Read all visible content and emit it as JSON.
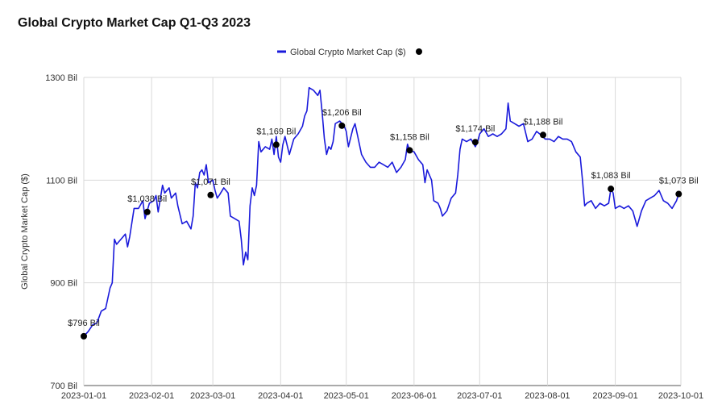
{
  "chart_data": {
    "type": "line",
    "title": "Global Crypto Market Cap Q1-Q3 2023",
    "ylabel": "Global Crypto Market Cap ($)",
    "xlabel": "",
    "ylim": [
      700,
      1300
    ],
    "y_ticks": [
      "700 Bil",
      "900 Bil",
      "1100 Bil",
      "1300 Bil"
    ],
    "y_tick_values": [
      700,
      900,
      1100,
      1300
    ],
    "x_ticks": [
      "2023-01-01",
      "2023-02-01",
      "2023-03-01",
      "2023-04-01",
      "2023-05-01",
      "2023-06-01",
      "2023-07-01",
      "2023-08-01",
      "2023-09-01",
      "2023-10-01"
    ],
    "grid": true,
    "legend_position": "top-center",
    "series": [
      {
        "name": "Global Crypto Market Cap ($)",
        "color": "#1a1adb",
        "points": [
          [
            "2023-01-01",
            796
          ],
          [
            "2023-01-03",
            805
          ],
          [
            "2023-01-05",
            818
          ],
          [
            "2023-01-07",
            822
          ],
          [
            "2023-01-09",
            845
          ],
          [
            "2023-01-11",
            850
          ],
          [
            "2023-01-13",
            890
          ],
          [
            "2023-01-14",
            900
          ],
          [
            "2023-01-15",
            985
          ],
          [
            "2023-01-16",
            975
          ],
          [
            "2023-01-18",
            985
          ],
          [
            "2023-01-20",
            995
          ],
          [
            "2023-01-21",
            970
          ],
          [
            "2023-01-22",
            990
          ],
          [
            "2023-01-24",
            1045
          ],
          [
            "2023-01-26",
            1045
          ],
          [
            "2023-01-28",
            1060
          ],
          [
            "2023-01-29",
            1025
          ],
          [
            "2023-01-31",
            1055
          ],
          [
            "2023-02-02",
            1060
          ],
          [
            "2023-02-03",
            1070
          ],
          [
            "2023-02-04",
            1038
          ],
          [
            "2023-02-06",
            1090
          ],
          [
            "2023-02-07",
            1075
          ],
          [
            "2023-02-09",
            1085
          ],
          [
            "2023-02-10",
            1065
          ],
          [
            "2023-02-12",
            1075
          ],
          [
            "2023-02-13",
            1050
          ],
          [
            "2023-02-15",
            1015
          ],
          [
            "2023-02-17",
            1020
          ],
          [
            "2023-02-19",
            1005
          ],
          [
            "2023-02-20",
            1030
          ],
          [
            "2023-02-21",
            1095
          ],
          [
            "2023-02-22",
            1085
          ],
          [
            "2023-02-23",
            1115
          ],
          [
            "2023-02-24",
            1120
          ],
          [
            "2023-02-25",
            1110
          ],
          [
            "2023-02-26",
            1130
          ],
          [
            "2023-02-27",
            1095
          ],
          [
            "2023-03-01",
            1100
          ],
          [
            "2023-03-02",
            1080
          ],
          [
            "2023-03-03",
            1065
          ],
          [
            "2023-03-04",
            1071
          ],
          [
            "2023-03-06",
            1085
          ],
          [
            "2023-03-08",
            1075
          ],
          [
            "2023-03-09",
            1030
          ],
          [
            "2023-03-11",
            1025
          ],
          [
            "2023-03-13",
            1020
          ],
          [
            "2023-03-14",
            985
          ],
          [
            "2023-03-15",
            935
          ],
          [
            "2023-03-16",
            960
          ],
          [
            "2023-03-17",
            945
          ],
          [
            "2023-03-18",
            1050
          ],
          [
            "2023-03-19",
            1085
          ],
          [
            "2023-03-20",
            1070
          ],
          [
            "2023-03-21",
            1090
          ],
          [
            "2023-03-22",
            1175
          ],
          [
            "2023-03-23",
            1155
          ],
          [
            "2023-03-25",
            1165
          ],
          [
            "2023-03-27",
            1160
          ],
          [
            "2023-03-28",
            1180
          ],
          [
            "2023-03-29",
            1150
          ],
          [
            "2023-03-30",
            1185
          ],
          [
            "2023-03-31",
            1145
          ],
          [
            "2023-04-01",
            1135
          ],
          [
            "2023-04-02",
            1169
          ],
          [
            "2023-04-03",
            1185
          ],
          [
            "2023-04-05",
            1150
          ],
          [
            "2023-04-07",
            1180
          ],
          [
            "2023-04-09",
            1190
          ],
          [
            "2023-04-11",
            1205
          ],
          [
            "2023-04-12",
            1225
          ],
          [
            "2023-04-13",
            1235
          ],
          [
            "2023-04-14",
            1280
          ],
          [
            "2023-04-16",
            1275
          ],
          [
            "2023-04-18",
            1265
          ],
          [
            "2023-04-19",
            1275
          ],
          [
            "2023-04-20",
            1230
          ],
          [
            "2023-04-21",
            1180
          ],
          [
            "2023-04-22",
            1150
          ],
          [
            "2023-04-23",
            1165
          ],
          [
            "2023-04-24",
            1160
          ],
          [
            "2023-04-25",
            1175
          ],
          [
            "2023-04-26",
            1210
          ],
          [
            "2023-04-28",
            1215
          ],
          [
            "2023-04-30",
            1206
          ],
          [
            "2023-05-01",
            1195
          ],
          [
            "2023-05-02",
            1165
          ],
          [
            "2023-05-04",
            1200
          ],
          [
            "2023-05-05",
            1210
          ],
          [
            "2023-05-06",
            1190
          ],
          [
            "2023-05-08",
            1150
          ],
          [
            "2023-05-10",
            1135
          ],
          [
            "2023-05-12",
            1125
          ],
          [
            "2023-05-14",
            1125
          ],
          [
            "2023-05-16",
            1135
          ],
          [
            "2023-05-18",
            1130
          ],
          [
            "2023-05-20",
            1125
          ],
          [
            "2023-05-22",
            1135
          ],
          [
            "2023-05-24",
            1115
          ],
          [
            "2023-05-26",
            1125
          ],
          [
            "2023-05-28",
            1140
          ],
          [
            "2023-05-29",
            1170
          ],
          [
            "2023-05-30",
            1158
          ],
          [
            "2023-06-01",
            1155
          ],
          [
            "2023-06-03",
            1140
          ],
          [
            "2023-06-05",
            1130
          ],
          [
            "2023-06-06",
            1095
          ],
          [
            "2023-06-07",
            1120
          ],
          [
            "2023-06-09",
            1100
          ],
          [
            "2023-06-10",
            1060
          ],
          [
            "2023-06-12",
            1055
          ],
          [
            "2023-06-13",
            1045
          ],
          [
            "2023-06-14",
            1030
          ],
          [
            "2023-06-16",
            1040
          ],
          [
            "2023-06-18",
            1065
          ],
          [
            "2023-06-20",
            1075
          ],
          [
            "2023-06-21",
            1110
          ],
          [
            "2023-06-22",
            1160
          ],
          [
            "2023-06-23",
            1180
          ],
          [
            "2023-06-25",
            1175
          ],
          [
            "2023-06-27",
            1180
          ],
          [
            "2023-06-29",
            1165
          ],
          [
            "2023-06-30",
            1174
          ],
          [
            "2023-07-01",
            1190
          ],
          [
            "2023-07-03",
            1200
          ],
          [
            "2023-07-05",
            1185
          ],
          [
            "2023-07-07",
            1190
          ],
          [
            "2023-07-09",
            1185
          ],
          [
            "2023-07-11",
            1190
          ],
          [
            "2023-07-13",
            1200
          ],
          [
            "2023-07-14",
            1250
          ],
          [
            "2023-07-15",
            1215
          ],
          [
            "2023-07-17",
            1210
          ],
          [
            "2023-07-19",
            1205
          ],
          [
            "2023-07-21",
            1210
          ],
          [
            "2023-07-23",
            1175
          ],
          [
            "2023-07-25",
            1180
          ],
          [
            "2023-07-27",
            1195
          ],
          [
            "2023-07-29",
            1188
          ],
          [
            "2023-07-31",
            1180
          ],
          [
            "2023-08-02",
            1180
          ],
          [
            "2023-08-04",
            1175
          ],
          [
            "2023-08-06",
            1185
          ],
          [
            "2023-08-08",
            1180
          ],
          [
            "2023-08-10",
            1180
          ],
          [
            "2023-08-12",
            1175
          ],
          [
            "2023-08-14",
            1155
          ],
          [
            "2023-08-16",
            1145
          ],
          [
            "2023-08-17",
            1100
          ],
          [
            "2023-08-18",
            1050
          ],
          [
            "2023-08-19",
            1055
          ],
          [
            "2023-08-21",
            1060
          ],
          [
            "2023-08-23",
            1045
          ],
          [
            "2023-08-25",
            1055
          ],
          [
            "2023-08-27",
            1050
          ],
          [
            "2023-08-29",
            1055
          ],
          [
            "2023-08-30",
            1083
          ],
          [
            "2023-08-31",
            1075
          ],
          [
            "2023-09-01",
            1045
          ],
          [
            "2023-09-03",
            1050
          ],
          [
            "2023-09-05",
            1045
          ],
          [
            "2023-09-07",
            1050
          ],
          [
            "2023-09-09",
            1040
          ],
          [
            "2023-09-11",
            1010
          ],
          [
            "2023-09-13",
            1040
          ],
          [
            "2023-09-15",
            1060
          ],
          [
            "2023-09-17",
            1065
          ],
          [
            "2023-09-19",
            1070
          ],
          [
            "2023-09-21",
            1080
          ],
          [
            "2023-09-23",
            1060
          ],
          [
            "2023-09-25",
            1055
          ],
          [
            "2023-09-27",
            1045
          ],
          [
            "2023-09-29",
            1060
          ],
          [
            "2023-09-30",
            1073
          ]
        ]
      }
    ],
    "annotations": [
      {
        "x": "2023-01-01",
        "y": 796,
        "label": "$796 Bil"
      },
      {
        "x": "2023-01-30",
        "y": 1038,
        "label": "$1,038 Bil"
      },
      {
        "x": "2023-02-28",
        "y": 1071,
        "label": "$1,071 Bil"
      },
      {
        "x": "2023-03-30",
        "y": 1169,
        "label": "$1,169 Bil"
      },
      {
        "x": "2023-04-29",
        "y": 1206,
        "label": "$1,206 Bil"
      },
      {
        "x": "2023-05-30",
        "y": 1158,
        "label": "$1,158 Bil"
      },
      {
        "x": "2023-06-29",
        "y": 1174,
        "label": "$1,174 Bil"
      },
      {
        "x": "2023-07-30",
        "y": 1188,
        "label": "$1,188 Bil"
      },
      {
        "x": "2023-08-30",
        "y": 1083,
        "label": "$1,083 Bil"
      },
      {
        "x": "2023-09-30",
        "y": 1073,
        "label": "$1,073 Bil"
      }
    ]
  }
}
